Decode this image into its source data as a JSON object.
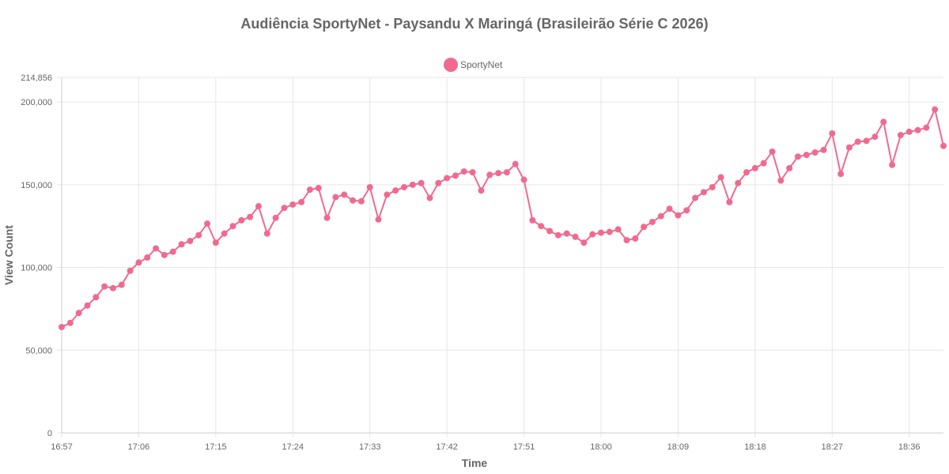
{
  "chart_data": {
    "type": "line",
    "title": "Audiência SportyNet - Paysandu X Maringá (Brasileirão Série C 2026)",
    "xlabel": "Time",
    "ylabel": "View Count",
    "ylim": [
      0,
      214856
    ],
    "y_ticks": [
      0,
      50000,
      100000,
      150000,
      200000,
      214856
    ],
    "y_tick_labels": [
      "0",
      "50,000",
      "100,000",
      "150,000",
      "200,000",
      "214,856"
    ],
    "x_tick_labels": [
      "16:57",
      "17:06",
      "17:15",
      "17:24",
      "17:33",
      "17:42",
      "17:51",
      "18:00",
      "18:09",
      "18:18",
      "18:27",
      "18:36"
    ],
    "grid": true,
    "legend_position": "top-center",
    "colors": {
      "series": "#f06a8f",
      "grid": "#e6e6e6",
      "text": "#666666"
    },
    "series": [
      {
        "name": "SportyNet",
        "x": [
          "16:57",
          "16:58",
          "16:59",
          "17:00",
          "17:01",
          "17:02",
          "17:03",
          "17:04",
          "17:05",
          "17:06",
          "17:07",
          "17:08",
          "17:09",
          "17:10",
          "17:11",
          "17:12",
          "17:13",
          "17:14",
          "17:15",
          "17:16",
          "17:17",
          "17:18",
          "17:19",
          "17:20",
          "17:21",
          "17:22",
          "17:23",
          "17:24",
          "17:25",
          "17:26",
          "17:27",
          "17:28",
          "17:29",
          "17:30",
          "17:31",
          "17:32",
          "17:33",
          "17:34",
          "17:35",
          "17:36",
          "17:37",
          "17:38",
          "17:39",
          "17:40",
          "17:41",
          "17:42",
          "17:43",
          "17:44",
          "17:45",
          "17:46",
          "17:47",
          "17:48",
          "17:49",
          "17:50",
          "17:51",
          "17:52",
          "17:53",
          "17:54",
          "17:55",
          "17:56",
          "17:57",
          "17:58",
          "17:59",
          "18:00",
          "18:01",
          "18:02",
          "18:03",
          "18:04",
          "18:05",
          "18:06",
          "18:07",
          "18:08",
          "18:09",
          "18:10",
          "18:11",
          "18:12",
          "18:13",
          "18:14",
          "18:15",
          "18:16",
          "18:17",
          "18:18",
          "18:19",
          "18:20",
          "18:21",
          "18:22",
          "18:23",
          "18:24",
          "18:25",
          "18:26",
          "18:27",
          "18:28",
          "18:29",
          "18:30",
          "18:31",
          "18:32",
          "18:33",
          "18:34",
          "18:35",
          "18:36",
          "18:37",
          "18:38",
          "18:39",
          "18:40"
        ],
        "values": [
          64000,
          66500,
          72500,
          77000,
          82000,
          88500,
          87500,
          89500,
          98000,
          103000,
          106000,
          111500,
          107500,
          109500,
          114000,
          116000,
          119500,
          126500,
          115000,
          120500,
          125000,
          128500,
          130500,
          137000,
          120500,
          130000,
          136000,
          138000,
          139500,
          147000,
          148000,
          130000,
          142500,
          144000,
          140500,
          140000,
          148500,
          129000,
          144000,
          146500,
          148500,
          150000,
          151000,
          142000,
          151000,
          154000,
          155500,
          158000,
          157500,
          146500,
          156000,
          157000,
          157500,
          162500,
          153000,
          128500,
          125000,
          122000,
          119500,
          120500,
          118500,
          115000,
          120000,
          121000,
          121500,
          123000,
          116500,
          117500,
          124500,
          127500,
          131000,
          135500,
          131500,
          134500,
          142000,
          145500,
          148500,
          154500,
          139500,
          151000,
          157500,
          160000,
          163000,
          170000,
          152500,
          160000,
          167000,
          168000,
          169500,
          171000,
          181000,
          156500,
          172500,
          176000,
          176500,
          179000,
          188000,
          162000,
          180000,
          182000,
          183000,
          184500,
          195500,
          173500
        ]
      }
    ]
  }
}
